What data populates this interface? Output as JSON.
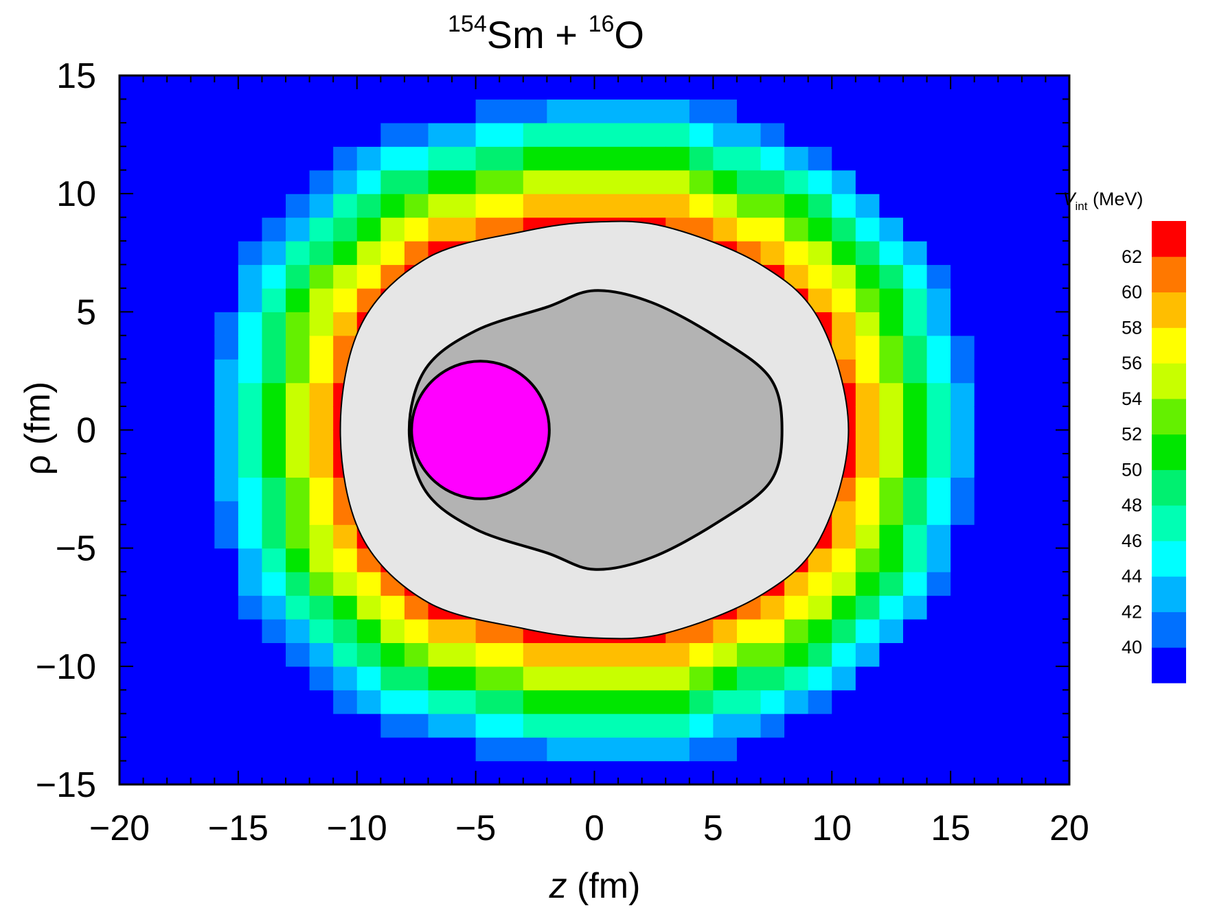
{
  "chart_data": {
    "type": "heatmap",
    "title": {
      "pre1": "154",
      "mid1": "Sm + ",
      "pre2": "16",
      "mid2": "O"
    },
    "xlabel": {
      "var": "z",
      "unit": " (fm)"
    },
    "ylabel": "ρ (fm)",
    "xlim": [
      -20,
      20
    ],
    "ylim": [
      -15,
      15
    ],
    "x_ticks": [
      -20,
      -15,
      -10,
      -5,
      0,
      5,
      10,
      15,
      20
    ],
    "x_tick_labels": [
      "−20",
      "−15",
      "−10",
      "−5",
      "0",
      "5",
      "10",
      "15",
      "20"
    ],
    "y_ticks": [
      -15,
      -10,
      -5,
      0,
      5,
      10,
      15
    ],
    "y_tick_labels": [
      "−15",
      "−10",
      "−5",
      "0",
      "5",
      "10",
      "15"
    ],
    "colorbar": {
      "label_var": "V",
      "label_sub": "int",
      "label_unit": " (MeV)",
      "levels": [
        40,
        42,
        44,
        46,
        48,
        50,
        52,
        54,
        56,
        58,
        60,
        62
      ],
      "level_labels": [
        "40",
        "42",
        "44",
        "46",
        "48",
        "50",
        "52",
        "54",
        "56",
        "58",
        "60",
        "62"
      ],
      "colors": [
        "#0000ff",
        "#0070ff",
        "#00b4ff",
        "#00ffff",
        "#00ffb4",
        "#00f070",
        "#00e600",
        "#64f000",
        "#c8ff00",
        "#ffff00",
        "#ffbe00",
        "#ff7800",
        "#ff0000"
      ]
    },
    "field": {
      "x_range": [
        -20,
        20
      ],
      "y_range": [
        -15,
        15
      ],
      "grid_spacing": 1,
      "peak_value": 63,
      "falloff_MeV_per_fm": 4,
      "outer_value": 38.5
    },
    "shapes": [
      {
        "name": "excluded-region",
        "fill": "#e6e6e6",
        "outline": "#000000",
        "contour": [
          [
            -10.7,
            0
          ],
          [
            -9.8,
            4.5
          ],
          [
            -7,
            7.3
          ],
          [
            -3,
            8.4
          ],
          [
            0,
            8.8
          ],
          [
            3,
            8.6
          ],
          [
            7,
            7
          ],
          [
            9.5,
            4.6
          ],
          [
            10.7,
            0
          ],
          [
            9.5,
            -4.6
          ],
          [
            7,
            -7
          ],
          [
            3,
            -8.6
          ],
          [
            0,
            -8.8
          ],
          [
            -3,
            -8.4
          ],
          [
            -7,
            -7.3
          ],
          [
            -9.8,
            -4.5
          ]
        ]
      },
      {
        "name": "sm154-nucleus",
        "fill": "#b3b3b3",
        "outline": "#000000",
        "contour": [
          [
            -7.8,
            0
          ],
          [
            -7.1,
            2.6
          ],
          [
            -5,
            4.2
          ],
          [
            -2,
            5.2
          ],
          [
            0,
            5.9
          ],
          [
            2.4,
            5.4
          ],
          [
            5.2,
            3.9
          ],
          [
            7.4,
            2.2
          ],
          [
            7.9,
            0
          ],
          [
            7.4,
            -2.2
          ],
          [
            5.2,
            -3.9
          ],
          [
            2.4,
            -5.4
          ],
          [
            0,
            -5.9
          ],
          [
            -2,
            -5.2
          ],
          [
            -5,
            -4.2
          ],
          [
            -7.1,
            -2.6
          ]
        ]
      },
      {
        "name": "o16-nucleus",
        "fill": "#ff00ff",
        "outline": "#000000",
        "center": [
          -4.8,
          0
        ],
        "radius": 2.9
      }
    ]
  }
}
